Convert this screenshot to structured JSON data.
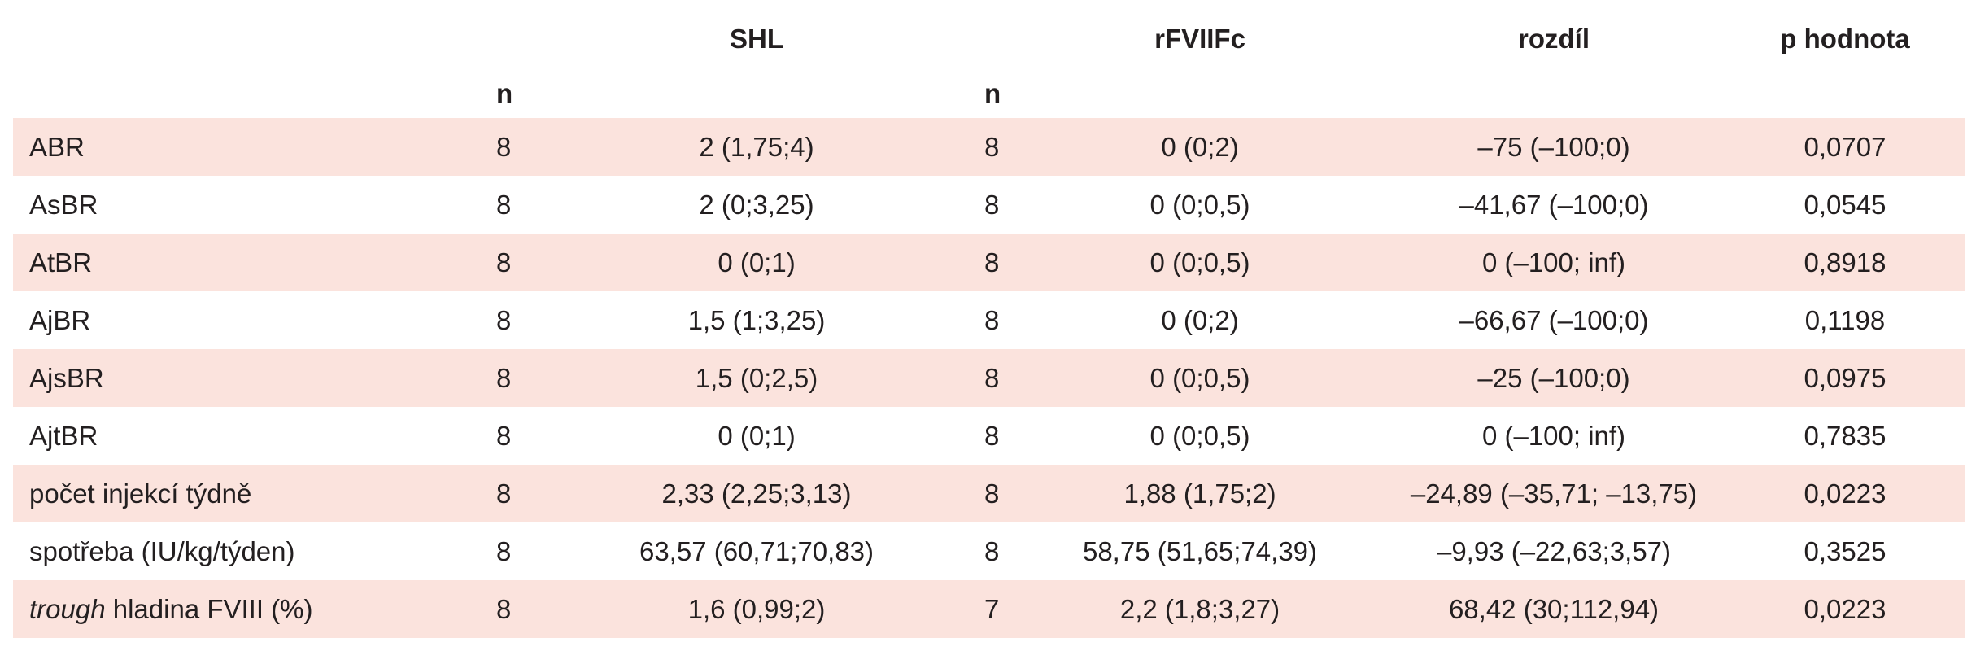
{
  "headers": {
    "group1": "SHL",
    "group2": "rFVIIFc",
    "diff": "rozdíl",
    "p": "p hodnota",
    "n1": "n",
    "n2": "n"
  },
  "rows": [
    {
      "label_italic": "",
      "label": "ABR",
      "n1": "8",
      "v1": "2 (1,75;4)",
      "n2": "8",
      "v2": "0 (0;2)",
      "diff": "–75 (–100;0)",
      "p": "0,0707"
    },
    {
      "label_italic": "",
      "label": "AsBR",
      "n1": "8",
      "v1": "2 (0;3,25)",
      "n2": "8",
      "v2": "0 (0;0,5)",
      "diff": "–41,67 (–100;0)",
      "p": "0,0545"
    },
    {
      "label_italic": "",
      "label": "AtBR",
      "n1": "8",
      "v1": "0 (0;1)",
      "n2": "8",
      "v2": "0 (0;0,5)",
      "diff": "0 (–100; inf)",
      "p": "0,8918"
    },
    {
      "label_italic": "",
      "label": "AjBR",
      "n1": "8",
      "v1": "1,5 (1;3,25)",
      "n2": "8",
      "v2": "0 (0;2)",
      "diff": "–66,67 (–100;0)",
      "p": "0,1198"
    },
    {
      "label_italic": "",
      "label": "AjsBR",
      "n1": "8",
      "v1": "1,5 (0;2,5)",
      "n2": "8",
      "v2": "0 (0;0,5)",
      "diff": "–25 (–100;0)",
      "p": "0,0975"
    },
    {
      "label_italic": "",
      "label": "AjtBR",
      "n1": "8",
      "v1": "0 (0;1)",
      "n2": "8",
      "v2": "0 (0;0,5)",
      "diff": "0 (–100; inf)",
      "p": "0,7835"
    },
    {
      "label_italic": "",
      "label": "počet injekcí týdně",
      "n1": "8",
      "v1": "2,33 (2,25;3,13)",
      "n2": "8",
      "v2": "1,88 (1,75;2)",
      "diff": "–24,89 (–35,71; –13,75)",
      "p": "0,0223"
    },
    {
      "label_italic": "",
      "label": "spotřeba (IU/kg/týden)",
      "n1": "8",
      "v1": "63,57 (60,71;70,83)",
      "n2": "8",
      "v2": "58,75 (51,65;74,39)",
      "diff": "–9,93 (–22,63;3,57)",
      "p": "0,3525"
    },
    {
      "label_italic": "trough",
      "label": " hladina FVIII (%)",
      "n1": "8",
      "v1": "1,6 (0,99;2)",
      "n2": "7",
      "v2": "2,2 (1,8;3,27)",
      "diff": "68,42 (30;112,94)",
      "p": "0,0223"
    }
  ],
  "colors": {
    "shade": "#fbe3dd",
    "text": "#231f20"
  }
}
